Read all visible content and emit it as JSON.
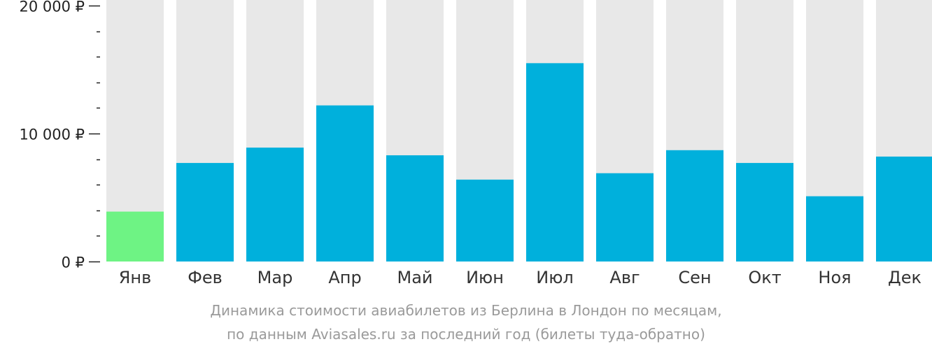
{
  "caption": {
    "line1": "Динамика стоимости авиабилетов из Берлина в Лондон по месяцам,",
    "line2": "по данным Aviasales.ru за последний год (билеты туда-обратно)"
  },
  "colors": {
    "background_bar": "#e8e8e8",
    "bar": "#00b0dc",
    "bar_min": "#6ef384",
    "axis": "#222222",
    "tick_label": "#222222",
    "category_label": "#333333",
    "caption": "#9a9a9a"
  },
  "chart_data": {
    "type": "bar",
    "categories": [
      "Янв",
      "Фев",
      "Мар",
      "Апр",
      "Май",
      "Июн",
      "Июл",
      "Авг",
      "Сен",
      "Окт",
      "Ноя",
      "Дек"
    ],
    "values": [
      3900,
      7700,
      8900,
      12200,
      8300,
      6400,
      15500,
      6900,
      8700,
      7700,
      5100,
      8200
    ],
    "highlight_index": 0,
    "ylim": [
      0,
      20000
    ],
    "y_major_ticks": [
      0,
      10000,
      20000
    ],
    "y_tick_labels": [
      "0 ₽",
      "10 000 ₽",
      "20 000 ₽"
    ],
    "y_minor_step": 2000,
    "xlabel": "",
    "ylabel": "",
    "grid": false,
    "legend": "none"
  }
}
